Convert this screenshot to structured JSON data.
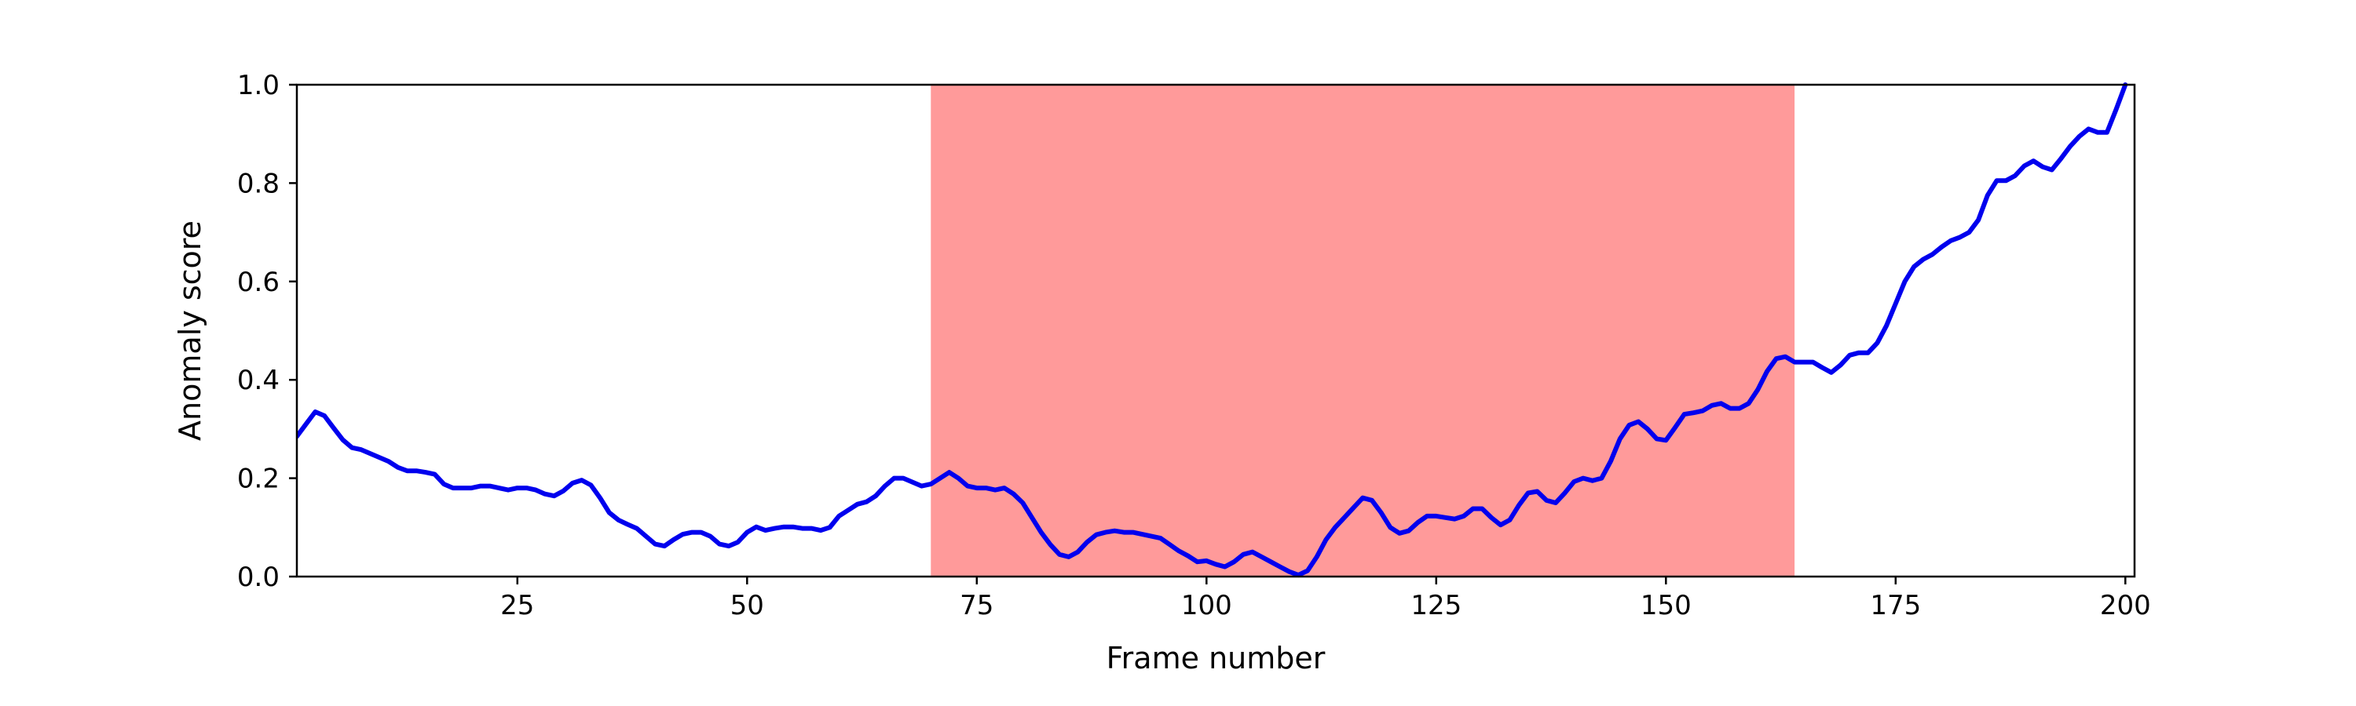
{
  "chart_data": {
    "type": "line",
    "title": "",
    "xlabel": "Frame number",
    "ylabel": "Anomaly score",
    "xlim": [
      1,
      201
    ],
    "ylim": [
      0,
      1.0
    ],
    "xticks": [
      25,
      50,
      75,
      100,
      125,
      150,
      175,
      200
    ],
    "xtick_labels": [
      "25",
      "50",
      "75",
      "100",
      "125",
      "150",
      "175",
      "200"
    ],
    "yticks": [
      0.0,
      0.2,
      0.4,
      0.6,
      0.8,
      1.0
    ],
    "ytick_labels": [
      "0.0",
      "0.2",
      "0.4",
      "0.6",
      "0.8",
      "1.0"
    ],
    "grid": false,
    "highlight_region": {
      "x_start": 70,
      "x_end": 164,
      "color": "#ff9a9a"
    },
    "series": [
      {
        "color": "#0000ee",
        "x": [
          1,
          2,
          3,
          4,
          5,
          6,
          7,
          8,
          9,
          10,
          11,
          12,
          13,
          14,
          15,
          16,
          17,
          18,
          19,
          20,
          21,
          22,
          23,
          24,
          25,
          26,
          27,
          28,
          29,
          30,
          31,
          32,
          33,
          34,
          35,
          36,
          37,
          38,
          39,
          40,
          41,
          42,
          43,
          44,
          45,
          46,
          47,
          48,
          49,
          50,
          51,
          52,
          53,
          54,
          55,
          56,
          57,
          58,
          59,
          60,
          61,
          62,
          63,
          64,
          65,
          66,
          67,
          68,
          69,
          70,
          71,
          72,
          73,
          74,
          75,
          76,
          77,
          78,
          79,
          80,
          81,
          82,
          83,
          84,
          85,
          86,
          87,
          88,
          89,
          90,
          91,
          92,
          93,
          94,
          95,
          96,
          97,
          98,
          99,
          100,
          101,
          102,
          103,
          104,
          105,
          106,
          107,
          108,
          109,
          110,
          111,
          112,
          113,
          114,
          115,
          116,
          117,
          118,
          119,
          120,
          121,
          122,
          123,
          124,
          125,
          126,
          127,
          128,
          129,
          130,
          131,
          132,
          133,
          134,
          135,
          136,
          137,
          138,
          139,
          140,
          141,
          142,
          143,
          144,
          145,
          146,
          147,
          148,
          149,
          150,
          151,
          152,
          153,
          154,
          155,
          156,
          157,
          158,
          159,
          160,
          161,
          162,
          163,
          164,
          165,
          166,
          167,
          168,
          169,
          170,
          171,
          172,
          173,
          174,
          175,
          176,
          177,
          178,
          179,
          180,
          181,
          182,
          183,
          184,
          185,
          186,
          187,
          188,
          189,
          190,
          191,
          192,
          193,
          194,
          195,
          196,
          197,
          198,
          199,
          200
        ],
        "y": [
          0.285,
          0.31,
          0.335,
          0.327,
          0.302,
          0.278,
          0.262,
          0.258,
          0.25,
          0.242,
          0.234,
          0.222,
          0.215,
          0.215,
          0.212,
          0.208,
          0.188,
          0.18,
          0.18,
          0.18,
          0.184,
          0.184,
          0.18,
          0.176,
          0.18,
          0.18,
          0.176,
          0.168,
          0.164,
          0.174,
          0.19,
          0.196,
          0.186,
          0.16,
          0.13,
          0.115,
          0.106,
          0.098,
          0.082,
          0.066,
          0.062,
          0.075,
          0.086,
          0.09,
          0.09,
          0.082,
          0.066,
          0.062,
          0.07,
          0.09,
          0.101,
          0.094,
          0.098,
          0.101,
          0.101,
          0.098,
          0.098,
          0.094,
          0.1,
          0.123,
          0.135,
          0.147,
          0.152,
          0.164,
          0.184,
          0.2,
          0.2,
          0.192,
          0.184,
          0.188,
          0.2,
          0.212,
          0.2,
          0.184,
          0.18,
          0.18,
          0.176,
          0.18,
          0.168,
          0.15,
          0.12,
          0.09,
          0.065,
          0.045,
          0.04,
          0.05,
          0.07,
          0.085,
          0.09,
          0.093,
          0.09,
          0.09,
          0.086,
          0.082,
          0.078,
          0.065,
          0.052,
          0.042,
          0.03,
          0.032,
          0.025,
          0.02,
          0.03,
          0.045,
          0.05,
          0.04,
          0.03,
          0.02,
          0.01,
          0.003,
          0.012,
          0.04,
          0.075,
          0.1,
          0.12,
          0.14,
          0.16,
          0.155,
          0.13,
          0.1,
          0.088,
          0.093,
          0.11,
          0.123,
          0.123,
          0.12,
          0.117,
          0.123,
          0.138,
          0.138,
          0.12,
          0.105,
          0.115,
          0.145,
          0.17,
          0.173,
          0.155,
          0.15,
          0.17,
          0.193,
          0.2,
          0.195,
          0.2,
          0.235,
          0.28,
          0.308,
          0.315,
          0.3,
          0.28,
          0.277,
          0.303,
          0.33,
          0.333,
          0.337,
          0.348,
          0.352,
          0.342,
          0.342,
          0.352,
          0.38,
          0.417,
          0.443,
          0.447,
          0.436,
          0.436,
          0.436,
          0.425,
          0.415,
          0.43,
          0.45,
          0.455,
          0.455,
          0.475,
          0.51,
          0.555,
          0.6,
          0.63,
          0.645,
          0.655,
          0.67,
          0.683,
          0.69,
          0.7,
          0.725,
          0.775,
          0.805,
          0.805,
          0.815,
          0.835,
          0.845,
          0.833,
          0.827,
          0.85,
          0.875,
          0.895,
          0.91,
          0.903,
          0.903,
          0.95,
          1.0
        ]
      }
    ]
  }
}
